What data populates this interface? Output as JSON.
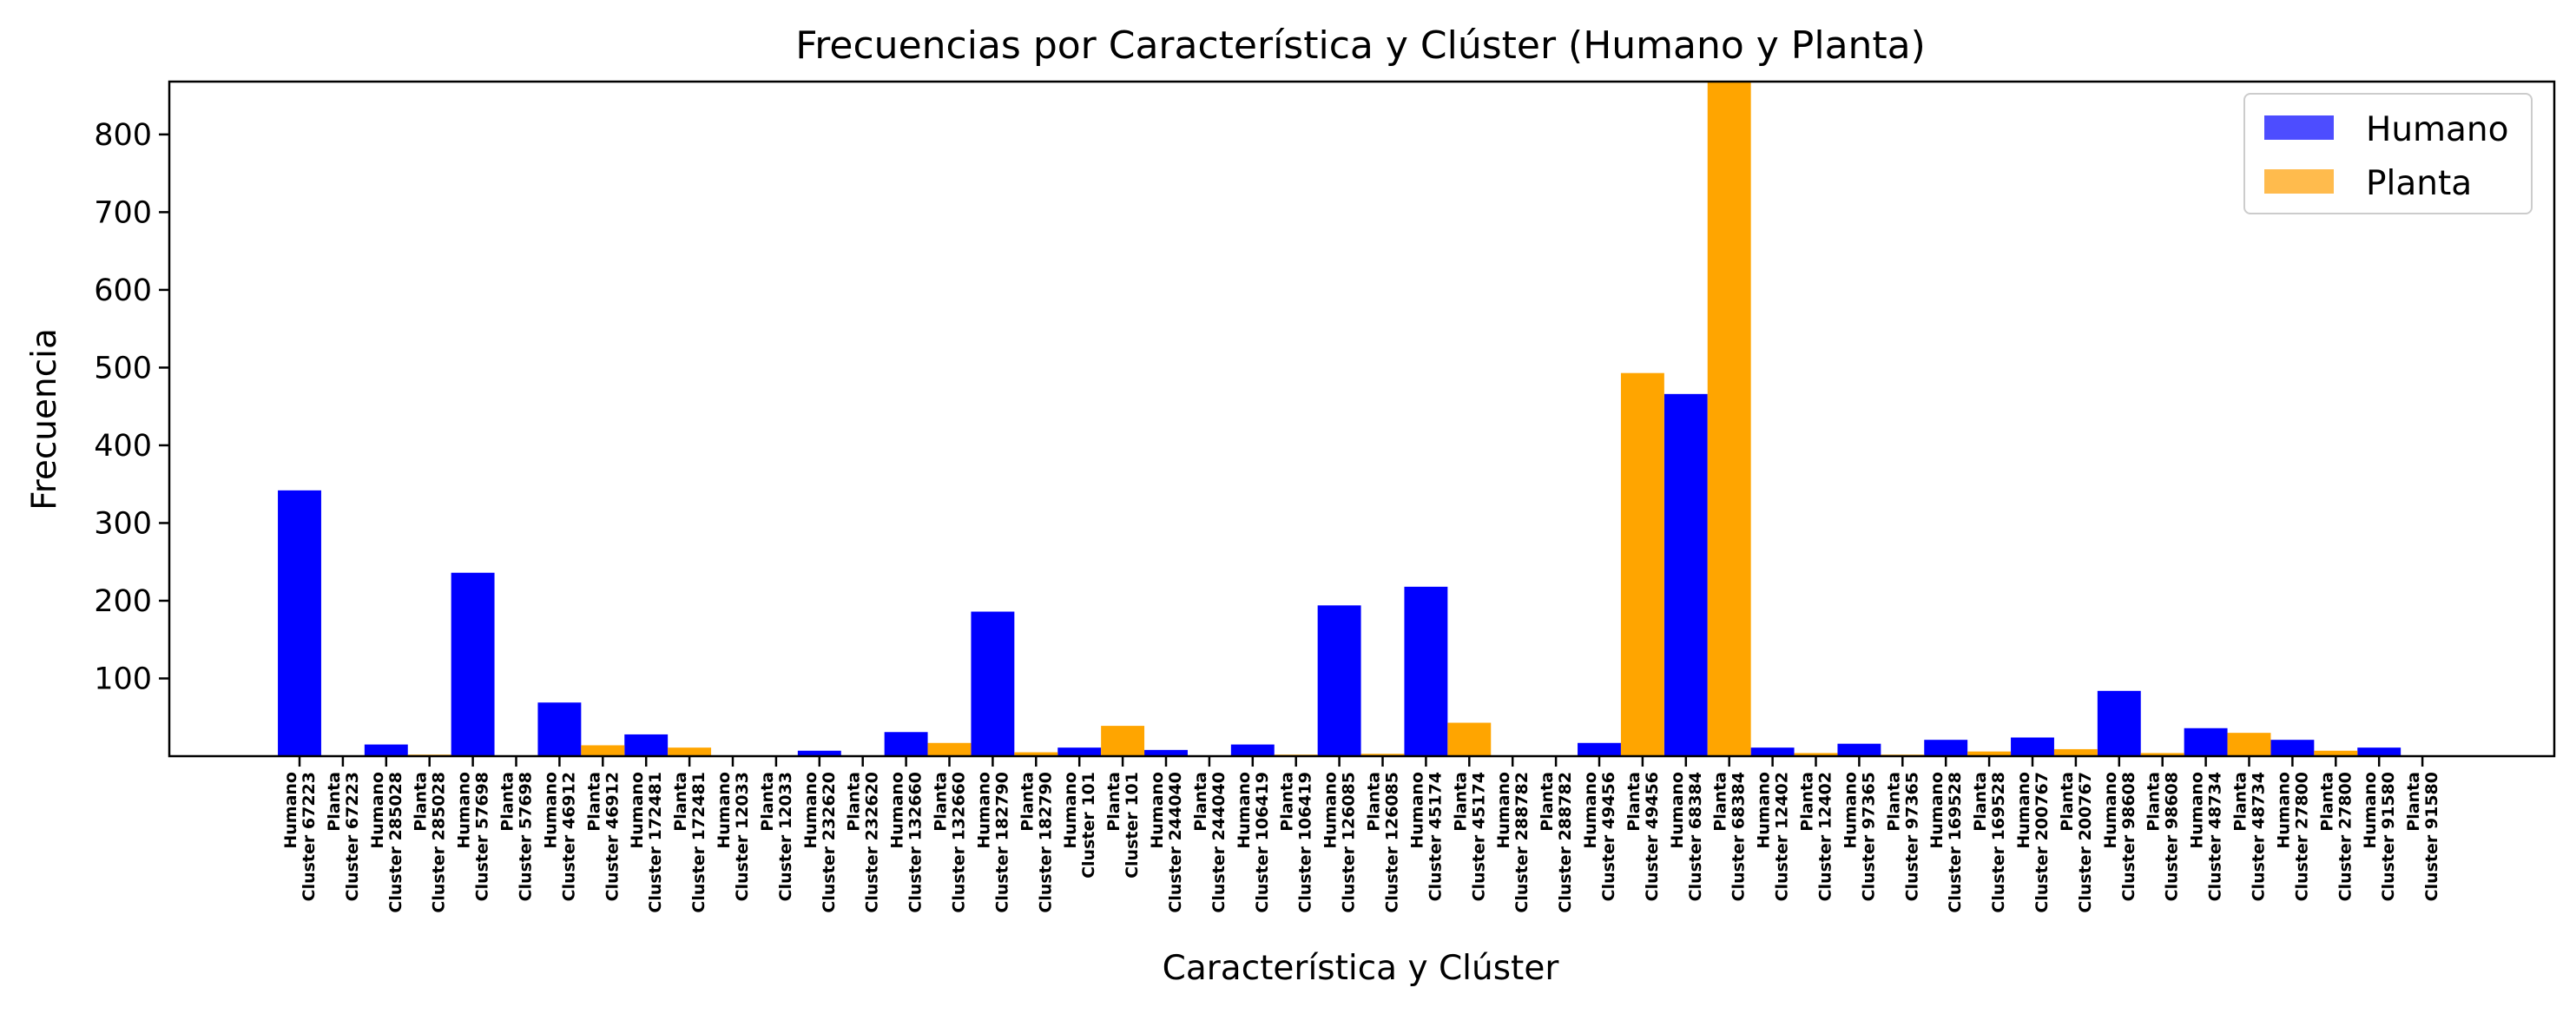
{
  "chart_data": {
    "type": "bar",
    "title": "Frecuencias por Característica y Clúster (Humano y Planta)",
    "xlabel": "Característica y Clúster",
    "ylabel": "Frecuencia",
    "ylim": [
      0,
      868
    ],
    "yticks": [
      100,
      200,
      300,
      400,
      500,
      600,
      700,
      800
    ],
    "grid": false,
    "legend_position": "top-right",
    "categories": [
      [
        "Humano",
        "Cluster 67223"
      ],
      [
        "Planta",
        "Cluster 67223"
      ],
      [
        "Humano",
        "Cluster 285028"
      ],
      [
        "Planta",
        "Cluster 285028"
      ],
      [
        "Humano",
        "Cluster 57698"
      ],
      [
        "Planta",
        "Cluster 57698"
      ],
      [
        "Humano",
        "Cluster 46912"
      ],
      [
        "Planta",
        "Cluster 46912"
      ],
      [
        "Humano",
        "Cluster 172481"
      ],
      [
        "Planta",
        "Cluster 172481"
      ],
      [
        "Humano",
        "Cluster 12033"
      ],
      [
        "Planta",
        "Cluster 12033"
      ],
      [
        "Humano",
        "Cluster 232620"
      ],
      [
        "Planta",
        "Cluster 232620"
      ],
      [
        "Humano",
        "Cluster 132660"
      ],
      [
        "Planta",
        "Cluster 132660"
      ],
      [
        "Humano",
        "Cluster 182790"
      ],
      [
        "Planta",
        "Cluster 182790"
      ],
      [
        "Humano",
        "Cluster 101"
      ],
      [
        "Planta",
        "Cluster 101"
      ],
      [
        "Humano",
        "Cluster 244040"
      ],
      [
        "Planta",
        "Cluster 244040"
      ],
      [
        "Humano",
        "Cluster 106419"
      ],
      [
        "Planta",
        "Cluster 106419"
      ],
      [
        "Humano",
        "Cluster 126085"
      ],
      [
        "Planta",
        "Cluster 126085"
      ],
      [
        "Humano",
        "Cluster 45174"
      ],
      [
        "Planta",
        "Cluster 45174"
      ],
      [
        "Humano",
        "Cluster 288782"
      ],
      [
        "Planta",
        "Cluster 288782"
      ],
      [
        "Humano",
        "Cluster 49456"
      ],
      [
        "Planta",
        "Cluster 49456"
      ],
      [
        "Humano",
        "Cluster 68384"
      ],
      [
        "Planta",
        "Cluster 68384"
      ],
      [
        "Humano",
        "Cluster 12402"
      ],
      [
        "Planta",
        "Cluster 12402"
      ],
      [
        "Humano",
        "Cluster 97365"
      ],
      [
        "Planta",
        "Cluster 97365"
      ],
      [
        "Humano",
        "Cluster 169528"
      ],
      [
        "Planta",
        "Cluster 169528"
      ],
      [
        "Humano",
        "Cluster 200767"
      ],
      [
        "Planta",
        "Cluster 200767"
      ],
      [
        "Humano",
        "Cluster 98608"
      ],
      [
        "Planta",
        "Cluster 98608"
      ],
      [
        "Humano",
        "Cluster 48734"
      ],
      [
        "Planta",
        "Cluster 48734"
      ],
      [
        "Humano",
        "Cluster 27800"
      ],
      [
        "Planta",
        "Cluster 27800"
      ],
      [
        "Humano",
        "Cluster 91580"
      ],
      [
        "Planta",
        "Cluster 91580"
      ]
    ],
    "series": [
      {
        "name": "Humano",
        "color": "#0000ff",
        "legend_color": "#4d4dff",
        "values": [
          342,
          0,
          15,
          0,
          236,
          0,
          69,
          0,
          28,
          0,
          1,
          0,
          7,
          0,
          31,
          0,
          186,
          0,
          11,
          0,
          8,
          0,
          15,
          0,
          194,
          0,
          218,
          0,
          1,
          0,
          17,
          0,
          466,
          0,
          11,
          0,
          16,
          0,
          21,
          0,
          24,
          0,
          84,
          0,
          36,
          0,
          21,
          0,
          11,
          0
        ]
      },
      {
        "name": "Planta",
        "color": "#ffa500",
        "legend_color": "#ffbb4d",
        "values": [
          0,
          1,
          0,
          2,
          0,
          1,
          0,
          14,
          0,
          11,
          0,
          1,
          0,
          1,
          0,
          17,
          0,
          5,
          0,
          39,
          0,
          1,
          0,
          2,
          0,
          3,
          0,
          43,
          0,
          1,
          0,
          493,
          0,
          880,
          0,
          4,
          0,
          2,
          0,
          6,
          0,
          9,
          0,
          4,
          0,
          30,
          0,
          7,
          0,
          1
        ]
      }
    ]
  }
}
